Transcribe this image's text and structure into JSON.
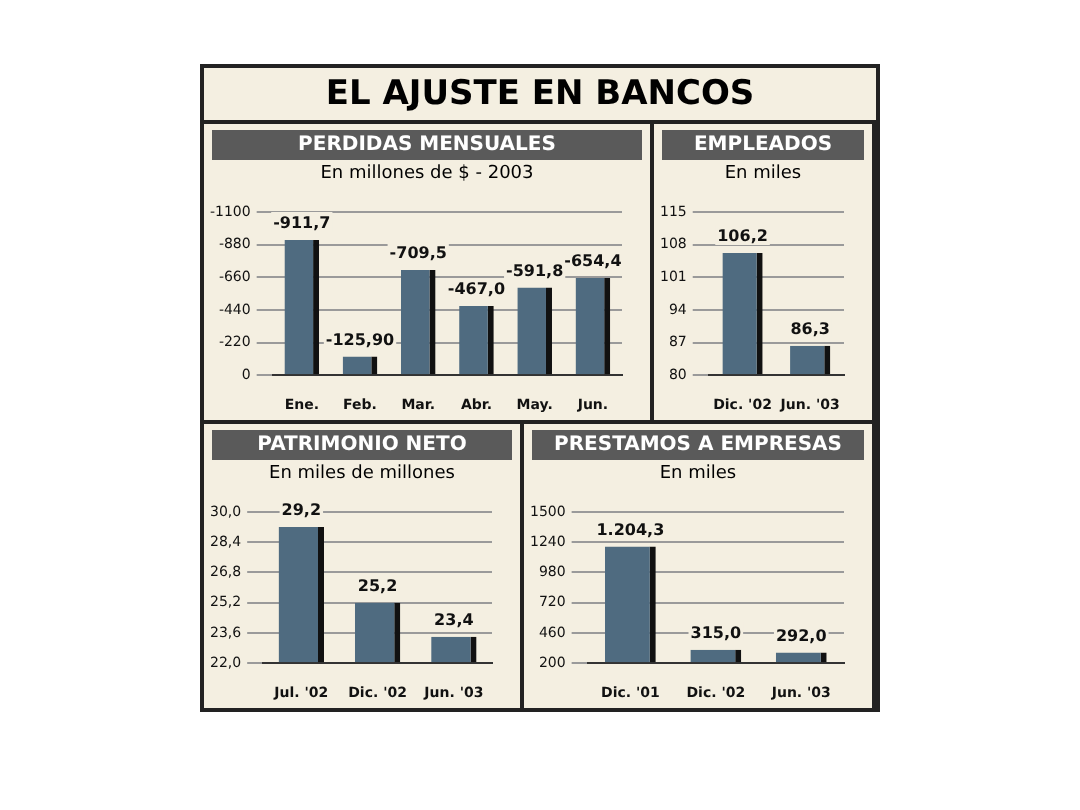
{
  "chart_data": [
    {
      "type": "other",
      "title": "EL AJUSTE EN BANCOS"
    },
    {
      "type": "bar",
      "title": "PERDIDAS MENSUALES",
      "subtitle": "En millones de $ - 2003",
      "categories": [
        "Ene.",
        "Feb.",
        "Mar.",
        "Abr.",
        "May.",
        "Jun."
      ],
      "values": [
        -911.7,
        -125.9,
        -709.5,
        -467.0,
        -591.8,
        -654.4
      ],
      "value_labels": [
        "-911,7",
        "-125,90",
        "-709,5",
        "-467,0",
        "-591,8",
        "-654,4"
      ],
      "color": "#4f6b80",
      "ylim": [
        0,
        -1100
      ],
      "yticks": [
        0,
        -220,
        -440,
        -660,
        -880,
        -1100
      ],
      "grid": "y"
    },
    {
      "type": "bar",
      "title": "EMPLEADOS",
      "subtitle": "En miles",
      "categories": [
        "Dic. '02",
        "Jun. '03"
      ],
      "values": [
        106.2,
        86.3
      ],
      "value_labels": [
        "106,2",
        "86,3"
      ],
      "color": "#4f6b80",
      "ylim": [
        80,
        115
      ],
      "yticks": [
        80,
        87,
        94,
        101,
        108,
        115
      ],
      "grid": "y"
    },
    {
      "type": "bar",
      "title": "PATRIMONIO NETO",
      "subtitle": "En miles de millones",
      "categories": [
        "Jul. '02",
        "Dic. '02",
        "Jun. '03"
      ],
      "values": [
        29.2,
        25.2,
        23.4
      ],
      "value_labels": [
        "29,2",
        "25,2",
        "23,4"
      ],
      "color": "#4f6b80",
      "ylim": [
        22,
        30
      ],
      "yticks": [
        {
          "value": 22,
          "label": "22,0"
        },
        {
          "value": 23.6,
          "label": "23,6"
        },
        {
          "value": 25.2,
          "label": "25,2"
        },
        {
          "value": 26.8,
          "label": "26,8"
        },
        {
          "value": 28.4,
          "label": "28,4"
        },
        {
          "value": 30,
          "label": "30,0"
        }
      ],
      "grid": "y"
    },
    {
      "type": "bar",
      "title": "PRESTAMOS A EMPRESAS",
      "subtitle": "En miles",
      "categories": [
        "Dic. '01",
        "Dic. '02",
        "Jun. '03"
      ],
      "values": [
        1204.3,
        315.0,
        292.0
      ],
      "value_labels": [
        "1.204,3",
        "315,0",
        "292,0"
      ],
      "color": "#4f6b80",
      "ylim": [
        200,
        1500
      ],
      "yticks": [
        200,
        460,
        720,
        980,
        1240,
        1500
      ],
      "grid": "y"
    }
  ]
}
